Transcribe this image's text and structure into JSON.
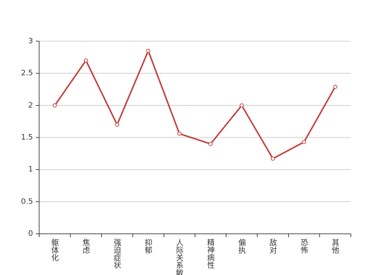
{
  "chart_data": {
    "type": "line",
    "categories": [
      "躯体化",
      "焦虑",
      "强迫症状",
      "抑郁",
      "人际关系敏感",
      "精神病性",
      "偏执",
      "敌对",
      "恐怖",
      "其他"
    ],
    "series": [
      {
        "color": "#c23531",
        "values": [
          2.0,
          2.7,
          1.7,
          2.85,
          1.56,
          1.4,
          2.0,
          1.17,
          1.43,
          2.29
        ]
      }
    ],
    "ylim": [
      0,
      3
    ],
    "yticks": [
      0,
      0.5,
      1,
      1.5,
      2,
      2.5,
      3
    ],
    "grid": true
  }
}
